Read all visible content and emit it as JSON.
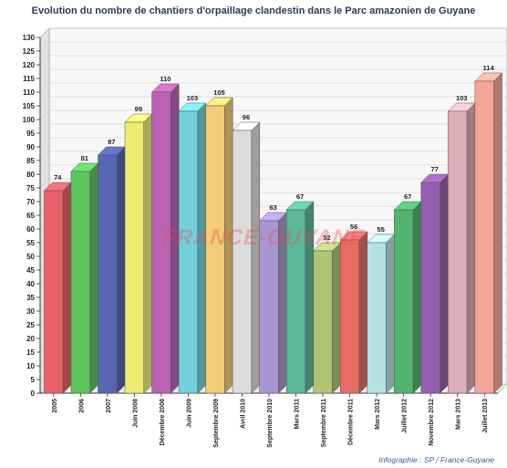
{
  "chart_data": {
    "type": "bar",
    "title": "Evolution du nombre de chantiers d'orpaillage clandestin dans le Parc amazonien de Guyane",
    "categories": [
      "2005",
      "2006",
      "2007",
      "Juin 2008",
      "Décembre 2008",
      "Juin 2009",
      "Septembre 2009",
      "Avril 2010",
      "Septembre 2010",
      "Mars 2011",
      "Septembre 2011",
      "Décembre 2011",
      "Mars 2012",
      "Juillet 2012",
      "Novembre 2012",
      "Mars 2013",
      "Juillet 2013"
    ],
    "values": [
      74,
      81,
      87,
      99,
      110,
      103,
      105,
      96,
      63,
      67,
      52,
      56,
      55,
      67,
      77,
      103,
      114
    ],
    "bar_colors": [
      "#e8606a",
      "#5ec55e",
      "#5666b0",
      "#ecec72",
      "#bc62b4",
      "#72d0dc",
      "#f2cc76",
      "#dcdcdc",
      "#a896d0",
      "#5cb89a",
      "#b2c276",
      "#e86c66",
      "#b6e0e2",
      "#52b46e",
      "#9460ae",
      "#dcaeba",
      "#f6a696"
    ],
    "ylim": [
      0,
      130
    ],
    "ytick_step": 5,
    "grid": true,
    "xlabel": "",
    "ylabel": ""
  },
  "watermark": "FRANCE-GUYANE",
  "credit": "Infographie : SP / France-Guyane"
}
